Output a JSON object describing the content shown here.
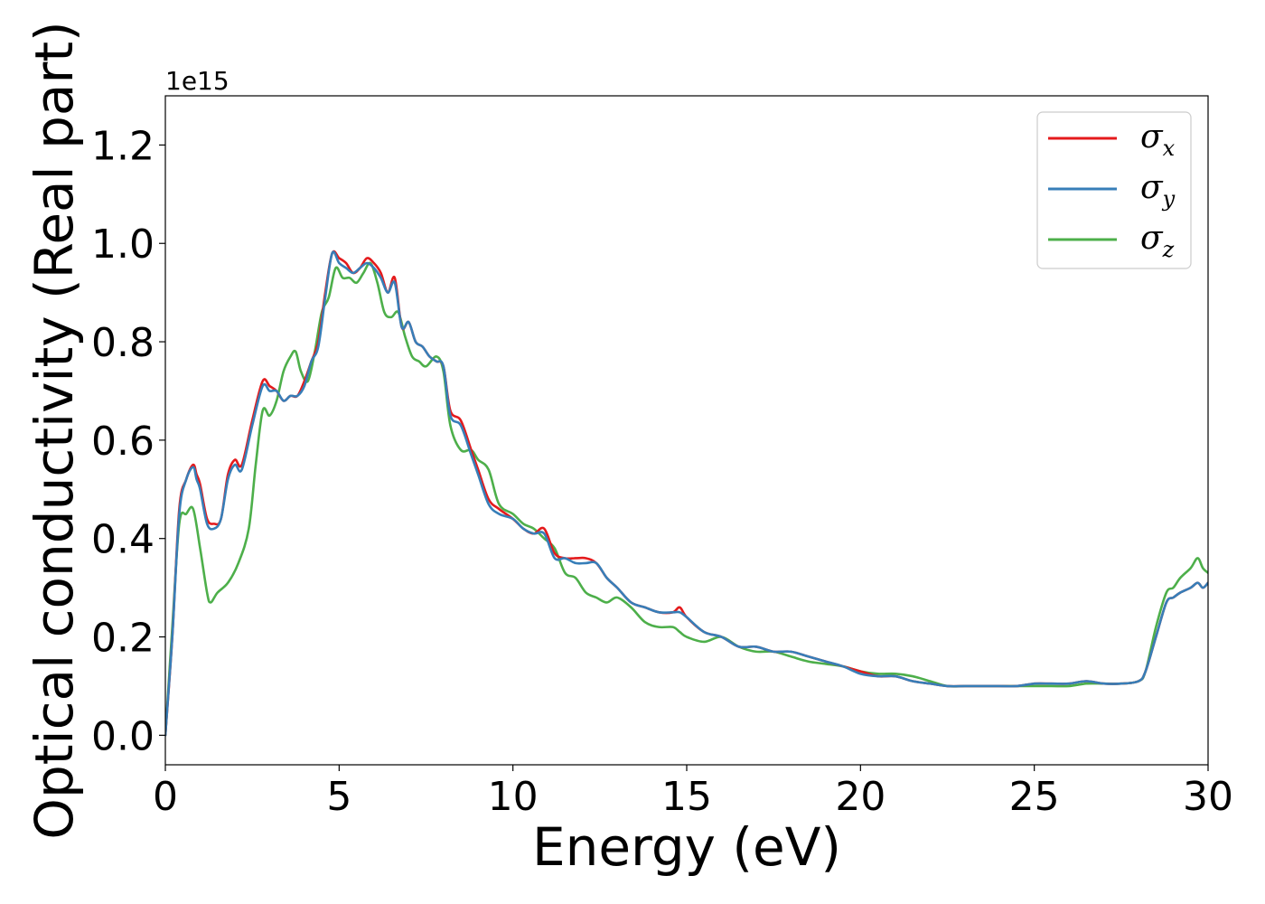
{
  "chart_data": {
    "type": "line",
    "xlabel": "Energy (eV)",
    "ylabel": "Optical conductivity (Real part)",
    "y_offset_label": "1e15",
    "xlim": [
      0,
      30
    ],
    "ylim": [
      -0.06,
      1.3
    ],
    "x_ticks": [
      0,
      5,
      10,
      15,
      20,
      25,
      30
    ],
    "x_tick_labels": [
      "0",
      "5",
      "10",
      "15",
      "20",
      "25",
      "30"
    ],
    "y_ticks": [
      0.0,
      0.2,
      0.4,
      0.6,
      0.8,
      1.0,
      1.2
    ],
    "y_tick_labels": [
      "0.0",
      "0.2",
      "0.4",
      "0.6",
      "0.8",
      "1.0",
      "1.2"
    ],
    "grid": false,
    "legend_position": "top-right",
    "series": [
      {
        "name": "σ",
        "subscript": "x",
        "color": "#e41a1c",
        "x": [
          0,
          0.2,
          0.4,
          0.6,
          0.8,
          0.9,
          1.0,
          1.2,
          1.4,
          1.6,
          1.8,
          2.0,
          2.2,
          2.5,
          2.8,
          3.0,
          3.2,
          3.4,
          3.6,
          3.8,
          4.0,
          4.2,
          4.4,
          4.6,
          4.8,
          5.0,
          5.2,
          5.4,
          5.6,
          5.8,
          6.0,
          6.2,
          6.4,
          6.6,
          6.8,
          7.0,
          7.2,
          7.4,
          7.6,
          7.8,
          8.0,
          8.2,
          8.5,
          8.8,
          9.0,
          9.3,
          9.6,
          10.0,
          10.3,
          10.6,
          10.9,
          11.2,
          11.5,
          11.8,
          12.1,
          12.4,
          12.7,
          13.0,
          13.4,
          13.8,
          14.2,
          14.6,
          14.8,
          15.0,
          15.5,
          16.0,
          16.5,
          17.0,
          17.5,
          18.0,
          18.5,
          19.0,
          19.5,
          20.0,
          20.5,
          21.0,
          21.5,
          22.0,
          22.5,
          23.0,
          23.5,
          24.0,
          24.5,
          25.0,
          25.5,
          26.0,
          26.5,
          27.0,
          27.5,
          28.0,
          28.2,
          28.5,
          28.8,
          29.0,
          29.2,
          29.5,
          29.7,
          29.85,
          30.0
        ],
        "y": [
          0.0,
          0.2,
          0.46,
          0.52,
          0.55,
          0.53,
          0.51,
          0.44,
          0.43,
          0.44,
          0.53,
          0.56,
          0.55,
          0.64,
          0.72,
          0.71,
          0.7,
          0.68,
          0.69,
          0.69,
          0.72,
          0.76,
          0.8,
          0.9,
          0.98,
          0.97,
          0.96,
          0.94,
          0.95,
          0.97,
          0.96,
          0.94,
          0.9,
          0.93,
          0.83,
          0.84,
          0.8,
          0.79,
          0.77,
          0.76,
          0.75,
          0.66,
          0.64,
          0.58,
          0.54,
          0.48,
          0.46,
          0.44,
          0.42,
          0.41,
          0.42,
          0.37,
          0.36,
          0.36,
          0.36,
          0.35,
          0.32,
          0.3,
          0.27,
          0.26,
          0.25,
          0.25,
          0.26,
          0.24,
          0.21,
          0.2,
          0.18,
          0.18,
          0.17,
          0.17,
          0.16,
          0.15,
          0.14,
          0.13,
          0.12,
          0.12,
          0.11,
          0.105,
          0.1,
          0.1,
          0.1,
          0.1,
          0.1,
          0.105,
          0.105,
          0.105,
          0.11,
          0.105,
          0.105,
          0.11,
          0.13,
          0.2,
          0.27,
          0.28,
          0.29,
          0.3,
          0.31,
          0.3,
          0.31
        ]
      },
      {
        "name": "σ",
        "subscript": "y",
        "color": "#377eb8",
        "x": [
          0,
          0.2,
          0.4,
          0.6,
          0.8,
          0.9,
          1.0,
          1.2,
          1.4,
          1.6,
          1.8,
          2.0,
          2.2,
          2.5,
          2.8,
          3.0,
          3.2,
          3.4,
          3.6,
          3.8,
          4.0,
          4.2,
          4.4,
          4.6,
          4.8,
          5.0,
          5.2,
          5.4,
          5.6,
          5.8,
          6.0,
          6.2,
          6.4,
          6.6,
          6.8,
          7.0,
          7.2,
          7.4,
          7.6,
          7.8,
          8.0,
          8.2,
          8.5,
          8.8,
          9.0,
          9.3,
          9.6,
          10.0,
          10.3,
          10.6,
          10.9,
          11.2,
          11.5,
          11.8,
          12.1,
          12.4,
          12.7,
          13.0,
          13.4,
          13.8,
          14.2,
          14.6,
          14.8,
          15.0,
          15.5,
          16.0,
          16.5,
          17.0,
          17.5,
          18.0,
          18.5,
          19.0,
          19.5,
          20.0,
          20.5,
          21.0,
          21.5,
          22.0,
          22.5,
          23.0,
          23.5,
          24.0,
          24.5,
          25.0,
          25.5,
          26.0,
          26.5,
          27.0,
          27.5,
          28.0,
          28.2,
          28.5,
          28.8,
          29.0,
          29.2,
          29.5,
          29.7,
          29.85,
          30.0
        ],
        "y": [
          0.0,
          0.2,
          0.45,
          0.52,
          0.545,
          0.52,
          0.5,
          0.43,
          0.42,
          0.44,
          0.52,
          0.55,
          0.54,
          0.63,
          0.71,
          0.7,
          0.7,
          0.68,
          0.69,
          0.69,
          0.71,
          0.76,
          0.79,
          0.89,
          0.98,
          0.96,
          0.95,
          0.94,
          0.95,
          0.96,
          0.95,
          0.93,
          0.9,
          0.92,
          0.83,
          0.84,
          0.8,
          0.79,
          0.77,
          0.76,
          0.75,
          0.65,
          0.63,
          0.57,
          0.53,
          0.47,
          0.45,
          0.44,
          0.42,
          0.41,
          0.41,
          0.36,
          0.36,
          0.35,
          0.35,
          0.35,
          0.32,
          0.3,
          0.27,
          0.26,
          0.25,
          0.25,
          0.25,
          0.24,
          0.21,
          0.2,
          0.18,
          0.18,
          0.17,
          0.17,
          0.16,
          0.15,
          0.14,
          0.125,
          0.12,
          0.12,
          0.11,
          0.105,
          0.1,
          0.1,
          0.1,
          0.1,
          0.1,
          0.105,
          0.105,
          0.105,
          0.11,
          0.105,
          0.105,
          0.11,
          0.13,
          0.2,
          0.27,
          0.28,
          0.29,
          0.3,
          0.31,
          0.3,
          0.31
        ]
      },
      {
        "name": "σ",
        "subscript": "z",
        "color": "#4daf4a",
        "x": [
          0,
          0.2,
          0.4,
          0.6,
          0.8,
          1.0,
          1.2,
          1.3,
          1.5,
          1.8,
          2.1,
          2.4,
          2.6,
          2.8,
          3.0,
          3.2,
          3.4,
          3.6,
          3.75,
          3.9,
          4.1,
          4.3,
          4.5,
          4.7,
          4.9,
          5.1,
          5.3,
          5.5,
          5.7,
          5.9,
          6.1,
          6.3,
          6.5,
          6.7,
          6.9,
          7.1,
          7.3,
          7.5,
          7.8,
          8.0,
          8.2,
          8.5,
          8.8,
          9.0,
          9.3,
          9.6,
          10.0,
          10.3,
          10.6,
          10.9,
          11.2,
          11.5,
          11.8,
          12.1,
          12.4,
          12.7,
          13.0,
          13.4,
          13.8,
          14.2,
          14.6,
          14.8,
          15.0,
          15.5,
          16.0,
          16.5,
          17.0,
          17.5,
          18.0,
          18.5,
          19.0,
          19.5,
          20.0,
          20.5,
          21.0,
          21.5,
          22.0,
          22.5,
          23.0,
          23.5,
          24.0,
          24.5,
          25.0,
          25.5,
          26.0,
          26.5,
          27.0,
          27.5,
          28.0,
          28.2,
          28.5,
          28.8,
          29.0,
          29.2,
          29.5,
          29.7,
          29.85,
          30.0
        ],
        "y": [
          0.0,
          0.22,
          0.43,
          0.45,
          0.46,
          0.38,
          0.29,
          0.27,
          0.29,
          0.31,
          0.35,
          0.42,
          0.55,
          0.66,
          0.65,
          0.68,
          0.74,
          0.77,
          0.78,
          0.74,
          0.72,
          0.78,
          0.86,
          0.89,
          0.95,
          0.93,
          0.93,
          0.92,
          0.94,
          0.96,
          0.92,
          0.86,
          0.85,
          0.86,
          0.81,
          0.77,
          0.76,
          0.75,
          0.77,
          0.74,
          0.63,
          0.58,
          0.58,
          0.56,
          0.54,
          0.47,
          0.45,
          0.43,
          0.42,
          0.4,
          0.38,
          0.33,
          0.32,
          0.29,
          0.28,
          0.27,
          0.28,
          0.26,
          0.23,
          0.22,
          0.22,
          0.21,
          0.2,
          0.19,
          0.2,
          0.18,
          0.17,
          0.17,
          0.16,
          0.15,
          0.145,
          0.14,
          0.13,
          0.125,
          0.125,
          0.12,
          0.11,
          0.1,
          0.1,
          0.1,
          0.1,
          0.1,
          0.1,
          0.1,
          0.1,
          0.105,
          0.105,
          0.105,
          0.11,
          0.13,
          0.22,
          0.29,
          0.3,
          0.32,
          0.34,
          0.36,
          0.34,
          0.33
        ]
      }
    ]
  }
}
